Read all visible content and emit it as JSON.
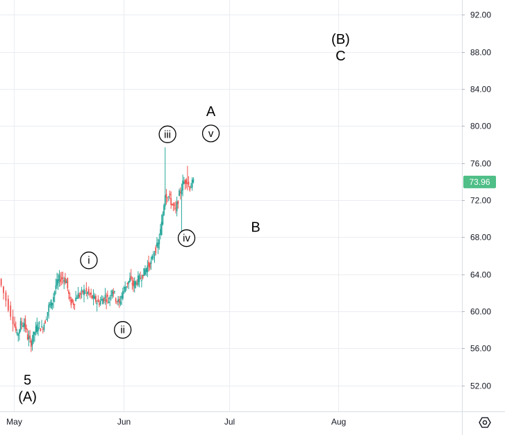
{
  "chart_data": {
    "type": "candlestick",
    "y_ticks": [
      "92.00",
      "88.00",
      "84.00",
      "80.00",
      "76.00",
      "72.00",
      "68.00",
      "64.00",
      "60.00",
      "56.00",
      "52.00"
    ],
    "y_tick_values": [
      92,
      88,
      84,
      80,
      76,
      72,
      68,
      64,
      60,
      56,
      52
    ],
    "ylim": [
      49.2,
      93.6
    ],
    "x_ticks": [
      "May",
      "Jun",
      "Jul",
      "Aug"
    ],
    "x_tick_days": [
      0,
      31,
      61,
      92
    ],
    "xlim_days": [
      -4,
      127
    ],
    "current_price": "73.96",
    "current_price_value": 73.96,
    "grid": true,
    "colors": {
      "up": "#26a69a",
      "down": "#ef5350",
      "grid": "#e9ecf1",
      "badge": "#4fbe87",
      "axis": "#131722"
    },
    "candles_summary": [
      {
        "day": -4,
        "close": 63.5
      },
      {
        "day": -2,
        "close": 61.2
      },
      {
        "day": 0,
        "close": 59.0
      },
      {
        "day": 1,
        "close": 57.3
      },
      {
        "day": 2,
        "close": 58.6
      },
      {
        "day": 3,
        "close": 58.8
      },
      {
        "day": 4,
        "close": 57.2
      },
      {
        "day": 5,
        "close": 56.6
      },
      {
        "day": 6,
        "close": 57.8
      },
      {
        "day": 7,
        "close": 58.6
      },
      {
        "day": 8,
        "close": 58.1
      },
      {
        "day": 9,
        "close": 59.0
      },
      {
        "day": 10,
        "close": 60.5
      },
      {
        "day": 11,
        "close": 61.1
      },
      {
        "day": 12,
        "close": 62.8
      },
      {
        "day": 13,
        "close": 63.5
      },
      {
        "day": 14,
        "close": 63.6
      },
      {
        "day": 15,
        "close": 63.2
      },
      {
        "day": 16,
        "close": 61.0
      },
      {
        "day": 17,
        "close": 60.9
      },
      {
        "day": 18,
        "close": 61.7
      },
      {
        "day": 19,
        "close": 61.8
      },
      {
        "day": 20,
        "close": 62.2
      },
      {
        "day": 21,
        "close": 62.0
      },
      {
        "day": 22,
        "close": 61.6
      },
      {
        "day": 23,
        "close": 61.3
      },
      {
        "day": 24,
        "close": 60.9
      },
      {
        "day": 25,
        "close": 61.2
      },
      {
        "day": 26,
        "close": 61.6
      },
      {
        "day": 27,
        "close": 61.2
      },
      {
        "day": 28,
        "close": 62.5
      },
      {
        "day": 29,
        "close": 61.4
      },
      {
        "day": 30,
        "close": 60.8
      },
      {
        "day": 31,
        "close": 62.2
      },
      {
        "day": 32,
        "close": 62.9
      },
      {
        "day": 33,
        "close": 63.4
      },
      {
        "day": 34,
        "close": 62.8
      },
      {
        "day": 35,
        "close": 63.3
      },
      {
        "day": 36,
        "close": 63.6
      },
      {
        "day": 37,
        "close": 64.2
      },
      {
        "day": 38,
        "close": 64.9
      },
      {
        "day": 39,
        "close": 65.2
      },
      {
        "day": 40,
        "close": 66.5
      },
      {
        "day": 41,
        "close": 67.2
      },
      {
        "day": 42,
        "close": 69.4
      },
      {
        "day": 43,
        "close": 72.8
      },
      {
        "day": 44,
        "close": 72.4
      },
      {
        "day": 45,
        "close": 71.5
      },
      {
        "day": 46,
        "close": 70.9
      },
      {
        "day": 47,
        "close": 72.6
      },
      {
        "day": 48,
        "close": 73.8
      },
      {
        "day": 49,
        "close": 74.2
      },
      {
        "day": 50,
        "close": 73.4
      },
      {
        "day": 51,
        "close": 73.96
      }
    ],
    "annotations": [
      {
        "label": "5",
        "circled": false,
        "day": 3.8,
        "price": 52.6
      },
      {
        "label": "(A)",
        "circled": false,
        "day": 3.8,
        "price": 50.8
      },
      {
        "label": "i",
        "circled": true,
        "day": 21.2,
        "price": 65.5
      },
      {
        "label": "ii",
        "circled": true,
        "day": 30.8,
        "price": 58.0
      },
      {
        "label": "iii",
        "circled": true,
        "day": 43.5,
        "price": 79.1
      },
      {
        "label": "iv",
        "circled": true,
        "day": 48.9,
        "price": 67.9
      },
      {
        "label": "v",
        "circled": true,
        "day": 55.8,
        "price": 79.2
      },
      {
        "label": "A",
        "circled": false,
        "day": 55.8,
        "price": 81.6
      },
      {
        "label": "B",
        "circled": false,
        "day": 68.5,
        "price": 69.1
      },
      {
        "label": "(B)",
        "circled": false,
        "day": 92.6,
        "price": 89.4
      },
      {
        "label": "C",
        "circled": false,
        "day": 92.6,
        "price": 87.6
      }
    ]
  },
  "axis": {
    "settings_icon": "gear-icon"
  }
}
